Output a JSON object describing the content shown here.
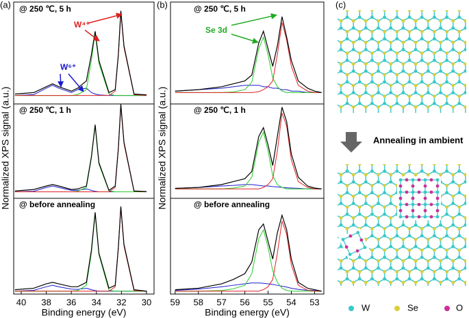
{
  "chart_data": [
    {
      "type": "line",
      "panel_label": "(a)",
      "xlabel": "Binding energy (eV)",
      "ylabel": "Normalized XPS signal (a.u.)",
      "annotations": [
        "@ 250 ℃, 5 h",
        "@ 250 ℃, 1 h",
        "@ before annealing",
        "W⁴⁺",
        "W⁶⁺"
      ],
      "x": [
        40.5,
        39,
        38,
        37.5,
        37,
        36,
        35.5,
        34.8,
        34.4,
        34.1,
        33.8,
        33,
        32.5,
        32.25,
        32.05,
        31.8,
        31,
        30
      ],
      "xlim": [
        40.6,
        29.4
      ],
      "xticks": [
        40,
        38,
        36,
        34,
        32,
        30
      ],
      "ylim": [
        0,
        100
      ],
      "series": [
        {
          "color": "#1a1acc",
          "values": [
            68,
            68.3,
            70.5,
            71.5,
            70.5,
            69,
            70,
            70.5,
            69,
            68.5,
            68.2,
            68,
            68,
            68,
            68,
            68,
            68,
            68
          ]
        },
        {
          "color": "#22cc22",
          "values": [
            68,
            68,
            68,
            68,
            68,
            68,
            68.3,
            70,
            80,
            89.5,
            79,
            68.5,
            68,
            68,
            68,
            68,
            68,
            68
          ]
        },
        {
          "color": "#e02020",
          "values": [
            68,
            68,
            68,
            68,
            68,
            68,
            68,
            68,
            68,
            68,
            68,
            68,
            69.5,
            81.5,
            96.5,
            84.5,
            68.3,
            68
          ]
        },
        {
          "color": "#000000",
          "values": [
            68.5,
            69,
            71,
            72,
            71,
            69.5,
            70.5,
            73,
            82,
            90,
            80,
            69,
            70,
            82,
            97,
            85,
            68.5,
            68.2
          ]
        },
        {
          "color": "#1a1acc",
          "values": [
            35,
            35.2,
            36.5,
            37,
            36.5,
            35.5,
            35.5,
            36,
            35.5,
            35.2,
            35,
            35,
            35,
            35,
            35,
            35,
            35,
            35
          ]
        },
        {
          "color": "#22cc22",
          "values": [
            35,
            35,
            35,
            35,
            35,
            35,
            35.2,
            36.5,
            46.5,
            57.5,
            44.5,
            35.3,
            35,
            35,
            35,
            35,
            35,
            35
          ]
        },
        {
          "color": "#e02020",
          "values": [
            35,
            35,
            35,
            35,
            35,
            35,
            35,
            35,
            35,
            35,
            35,
            35,
            36.5,
            49.5,
            64.5,
            51.5,
            35.2,
            35
          ]
        },
        {
          "color": "#000000",
          "values": [
            35.3,
            35.8,
            37,
            37.5,
            37,
            35.8,
            36,
            37,
            47,
            58,
            45,
            35.5,
            37,
            50,
            65,
            52,
            35.3,
            35.1
          ]
        },
        {
          "color": "#1a1acc",
          "values": [
            1,
            1.3,
            2.5,
            3,
            2.5,
            1.7,
            1.6,
            2,
            1.5,
            1.2,
            1,
            1,
            1,
            1,
            1,
            1,
            1,
            1
          ]
        },
        {
          "color": "#22cc22",
          "values": [
            1,
            1,
            1,
            1,
            1,
            1,
            1.2,
            3,
            14,
            27.5,
            13.5,
            1.3,
            1,
            1,
            1,
            1,
            1,
            1
          ]
        },
        {
          "color": "#e02020",
          "values": [
            1,
            1,
            1,
            1,
            1,
            1,
            1,
            1,
            1,
            1,
            1,
            1,
            2.5,
            15.5,
            29.5,
            16.5,
            1.2,
            1
          ]
        },
        {
          "color": "#000000",
          "values": [
            1.5,
            2,
            3.5,
            4,
            3.5,
            2.5,
            2.5,
            4,
            15,
            28,
            14,
            2,
            3,
            16,
            30,
            17,
            1.5,
            1
          ]
        }
      ]
    },
    {
      "type": "line",
      "panel_label": "(b)",
      "xlabel": "Binding energy (eV)",
      "ylabel": "Normalized XPS signal (a.u.)",
      "annotations": [
        "@ 250 ℃, 5 h",
        "@ 250 ℃, 1 h",
        "@ before annealing",
        "Se 3d"
      ],
      "x": [
        59,
        58,
        57,
        56.5,
        56,
        55.7,
        55.4,
        55.2,
        55,
        54.8,
        54.6,
        54.4,
        54.2,
        54,
        53.7,
        53.3,
        53,
        52.7
      ],
      "xlim": [
        59.2,
        52.6
      ],
      "xticks": [
        59,
        58,
        57,
        56,
        55,
        54,
        53
      ],
      "ylim": [
        0,
        100
      ],
      "series": [
        {
          "color": "#1a1acc",
          "values": [
            69.5,
            70,
            70.5,
            71,
            71.5,
            71.5,
            71.5,
            71,
            71,
            70.5,
            70.5,
            70,
            70,
            69.5,
            69.5,
            69,
            69,
            69
          ]
        },
        {
          "color": "#22cc22",
          "values": [
            69,
            69,
            69,
            69.2,
            70,
            72.5,
            84,
            88,
            82,
            74,
            71,
            69.5,
            69,
            69,
            69,
            69,
            69,
            69
          ]
        },
        {
          "color": "#e02020",
          "values": [
            69,
            69,
            69,
            69,
            69,
            69,
            69.3,
            70,
            71,
            73,
            82,
            93,
            87,
            78,
            71.5,
            69.5,
            69,
            69
          ]
        },
        {
          "color": "#000000",
          "values": [
            69.5,
            70,
            71,
            72,
            73,
            75,
            86,
            90,
            84,
            78,
            85,
            95,
            88,
            80,
            73,
            70.5,
            69.5,
            69
          ]
        },
        {
          "color": "#1a1acc",
          "values": [
            36.2,
            36.5,
            37,
            37.2,
            37.5,
            37.5,
            37.2,
            37,
            37,
            36.8,
            36.7,
            36.5,
            36.4,
            36.3,
            36.2,
            36,
            36,
            36
          ]
        },
        {
          "color": "#22cc22",
          "values": [
            36,
            36,
            36,
            36.3,
            37,
            40,
            52,
            55.5,
            49,
            40.5,
            37.5,
            36.5,
            36,
            36,
            36,
            36,
            36,
            36
          ]
        },
        {
          "color": "#e02020",
          "values": [
            36,
            36,
            36,
            36,
            36,
            36,
            36,
            36.5,
            37.5,
            39.5,
            49,
            62,
            57.5,
            46,
            38.5,
            36.5,
            36,
            36
          ]
        },
        {
          "color": "#000000",
          "values": [
            36.2,
            36.5,
            37.5,
            38.5,
            39.5,
            42,
            54,
            57,
            51,
            44,
            54,
            64,
            59,
            48,
            40,
            37,
            36.3,
            36
          ]
        },
        {
          "color": "#1a1acc",
          "values": [
            1.3,
            1.7,
            2.5,
            3,
            3.5,
            3.8,
            3.8,
            3.7,
            3.5,
            3.3,
            3,
            2.7,
            2.4,
            2,
            1.6,
            1.3,
            1.2,
            1
          ]
        },
        {
          "color": "#22cc22",
          "values": [
            1,
            1,
            1.2,
            1.8,
            3,
            7,
            19,
            22,
            16,
            8,
            4,
            2,
            1.2,
            1,
            1,
            1,
            1,
            1
          ]
        },
        {
          "color": "#e02020",
          "values": [
            1,
            1,
            1,
            1,
            1,
            1,
            1,
            1.5,
            2.5,
            5,
            14,
            25,
            20.5,
            10,
            3,
            1.3,
            1,
            1
          ]
        },
        {
          "color": "#000000",
          "values": [
            1.5,
            2,
            3.5,
            5,
            7,
            11,
            22,
            24,
            18,
            12,
            21,
            27,
            22,
            12,
            4,
            2,
            1.5,
            1
          ]
        }
      ]
    }
  ],
  "panel_c": {
    "panel_label": "(c)",
    "arrow_label": "Annealing in ambient",
    "legend": [
      "W",
      "Se",
      "O"
    ],
    "atom_colors": [
      "#3cc8c8",
      "#d9cf3c",
      "#c8329a"
    ]
  }
}
